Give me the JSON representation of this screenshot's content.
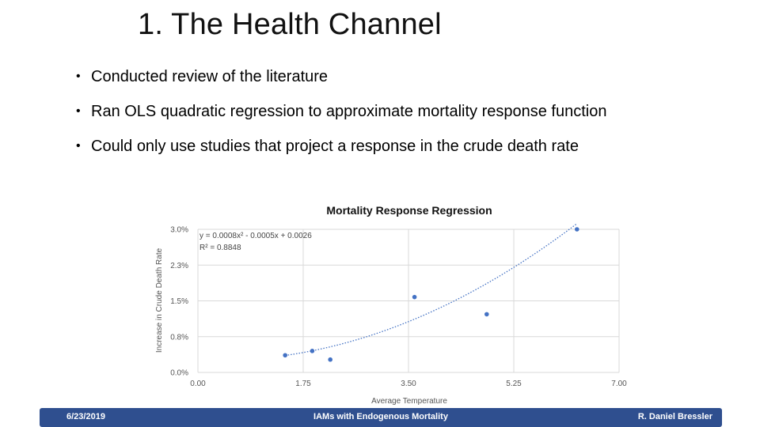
{
  "slide": {
    "title": "1. The Health Channel",
    "bullets": [
      "Conducted review of the literature",
      "Ran OLS quadratic regression to approximate mortality response function",
      "Could only use studies that project a response in the crude death rate"
    ]
  },
  "chart_data": {
    "type": "scatter",
    "title": "Mortality Response Regression",
    "xlabel": "Average Temperature",
    "ylabel": "Increase in Crude Death Rate",
    "xlim": [
      0,
      7
    ],
    "ylim": [
      0,
      0.03
    ],
    "x_ticks": [
      "0.00",
      "1.75",
      "3.50",
      "5.25",
      "7.00"
    ],
    "y_ticks": [
      "0.0%",
      "0.8%",
      "1.5%",
      "2.3%",
      "3.0%"
    ],
    "grid": true,
    "series": [
      {
        "x": [
          1.45,
          1.9,
          2.2,
          3.6,
          4.8,
          6.3
        ],
        "y": [
          0.0036,
          0.0045,
          0.0027,
          0.0158,
          0.0122,
          0.03
        ],
        "color": "#4472c4"
      }
    ],
    "trendline": {
      "style": "dotted",
      "color": "#4472c4",
      "coefficients": [
        0.0008,
        -0.0005,
        0.0026
      ],
      "x_range": [
        1.45,
        6.3
      ],
      "equation": "y = 0.0008x² - 0.0005x + 0.0026",
      "r_squared": "R² = 0.8848"
    }
  },
  "footer": {
    "date": "6/23/2019",
    "center": "IAMs with Endogenous Mortality",
    "author": "R. Daniel Bressler"
  }
}
